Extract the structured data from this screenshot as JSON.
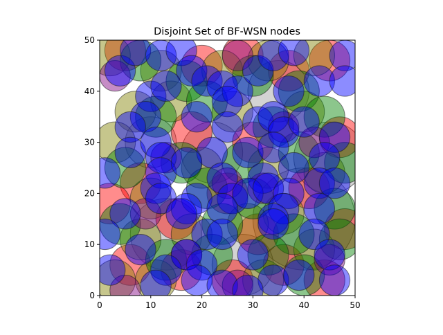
{
  "chart_data": {
    "type": "scatter",
    "title": "Disjoint Set of BF-WSN nodes",
    "xlabel": "",
    "ylabel": "",
    "xlim": [
      0,
      50
    ],
    "ylim": [
      0,
      50
    ],
    "x_ticks": [
      0,
      10,
      20,
      30,
      40,
      50
    ],
    "y_ticks": [
      0,
      10,
      20,
      30,
      40,
      50
    ],
    "grid": false,
    "legend": "none",
    "marker": "filled translucent circle with dark outline",
    "colors": {
      "red": "#ff0000",
      "green": "#008000",
      "blue": "#0000ff",
      "gray": "#808080",
      "purple": "#800080",
      "olive": "#808000"
    },
    "series": [
      {
        "color": "#808080",
        "points": [
          {
            "x": 40,
            "y": 15,
            "r": 10
          },
          {
            "x": 13,
            "y": 12,
            "r": 7
          },
          {
            "x": 45,
            "y": 27,
            "r": 7
          },
          {
            "x": 22,
            "y": 28,
            "r": 6
          },
          {
            "x": 35,
            "y": 40,
            "r": 6
          },
          {
            "x": 10,
            "y": 30,
            "r": 5
          },
          {
            "x": 28,
            "y": 6,
            "r": 6
          }
        ]
      },
      {
        "color": "#ff0000",
        "points": [
          {
            "x": 5,
            "y": 48,
            "r": 4
          },
          {
            "x": 20,
            "y": 45,
            "r": 4
          },
          {
            "x": 28,
            "y": 47,
            "r": 4
          },
          {
            "x": 37,
            "y": 44,
            "r": 4
          },
          {
            "x": 45,
            "y": 46,
            "r": 4
          },
          {
            "x": 18,
            "y": 32,
            "r": 4
          },
          {
            "x": 30,
            "y": 30,
            "r": 4
          },
          {
            "x": 47,
            "y": 31,
            "r": 4
          },
          {
            "x": 8,
            "y": 22,
            "r": 4
          },
          {
            "x": 25,
            "y": 20,
            "r": 4
          },
          {
            "x": 41,
            "y": 21,
            "r": 4
          },
          {
            "x": 2,
            "y": 18,
            "r": 4
          },
          {
            "x": 15,
            "y": 15,
            "r": 4
          },
          {
            "x": 31,
            "y": 12,
            "r": 4
          },
          {
            "x": 48,
            "y": 13,
            "r": 4
          },
          {
            "x": 6,
            "y": 6,
            "r": 4
          },
          {
            "x": 16,
            "y": 5,
            "r": 4
          },
          {
            "x": 26,
            "y": 3,
            "r": 4
          },
          {
            "x": 36,
            "y": 6,
            "r": 4
          },
          {
            "x": 44,
            "y": 3,
            "r": 4
          }
        ]
      },
      {
        "color": "#808000",
        "points": [
          {
            "x": 2,
            "y": 47,
            "r": 4
          },
          {
            "x": 12,
            "y": 44,
            "r": 4
          },
          {
            "x": 24,
            "y": 44,
            "r": 4
          },
          {
            "x": 33,
            "y": 46,
            "r": 4
          },
          {
            "x": 42,
            "y": 47,
            "r": 4
          },
          {
            "x": 7,
            "y": 36,
            "r": 4
          },
          {
            "x": 14,
            "y": 38,
            "r": 4
          },
          {
            "x": 26,
            "y": 36,
            "r": 4
          },
          {
            "x": 40,
            "y": 36,
            "r": 4
          },
          {
            "x": 3,
            "y": 30,
            "r": 4
          },
          {
            "x": 20,
            "y": 25,
            "r": 4
          },
          {
            "x": 33,
            "y": 25,
            "r": 4
          },
          {
            "x": 44,
            "y": 24,
            "r": 4
          },
          {
            "x": 10,
            "y": 19,
            "r": 4
          },
          {
            "x": 36,
            "y": 16,
            "r": 4
          },
          {
            "x": 8,
            "y": 11,
            "r": 4
          },
          {
            "x": 18,
            "y": 12,
            "r": 4
          },
          {
            "x": 29,
            "y": 14,
            "r": 4
          },
          {
            "x": 42,
            "y": 9,
            "r": 4
          },
          {
            "x": 3,
            "y": 3,
            "r": 4
          },
          {
            "x": 11,
            "y": 3,
            "r": 4
          },
          {
            "x": 32,
            "y": 3,
            "r": 4
          }
        ]
      },
      {
        "color": "#008000",
        "points": [
          {
            "x": 8,
            "y": 46,
            "r": 4
          },
          {
            "x": 17,
            "y": 42,
            "r": 4
          },
          {
            "x": 30,
            "y": 43,
            "r": 4
          },
          {
            "x": 39,
            "y": 40,
            "r": 4
          },
          {
            "x": 11,
            "y": 35,
            "r": 4
          },
          {
            "x": 21,
            "y": 38,
            "r": 4
          },
          {
            "x": 34,
            "y": 33,
            "r": 4
          },
          {
            "x": 44,
            "y": 35,
            "r": 4
          },
          {
            "x": 5,
            "y": 25,
            "r": 4
          },
          {
            "x": 16,
            "y": 26,
            "r": 4
          },
          {
            "x": 28,
            "y": 26,
            "r": 4
          },
          {
            "x": 39,
            "y": 28,
            "r": 4
          },
          {
            "x": 48,
            "y": 26,
            "r": 4
          },
          {
            "x": 21,
            "y": 21,
            "r": 4
          },
          {
            "x": 30,
            "y": 19,
            "r": 4
          },
          {
            "x": 46,
            "y": 17,
            "r": 4
          },
          {
            "x": 4,
            "y": 14,
            "r": 4
          },
          {
            "x": 24,
            "y": 14,
            "r": 4
          },
          {
            "x": 38,
            "y": 12,
            "r": 4
          },
          {
            "x": 47,
            "y": 11,
            "r": 4
          },
          {
            "x": 13,
            "y": 7,
            "r": 4
          },
          {
            "x": 22,
            "y": 8,
            "r": 4
          },
          {
            "x": 33,
            "y": 8,
            "r": 4
          },
          {
            "x": 40,
            "y": 4,
            "r": 4
          }
        ]
      },
      {
        "color": "#800080",
        "points": [
          {
            "x": 3,
            "y": 43,
            "r": 3
          },
          {
            "x": 27,
            "y": 47,
            "r": 3
          },
          {
            "x": 36,
            "y": 33,
            "r": 3
          },
          {
            "x": 13,
            "y": 27,
            "r": 3
          },
          {
            "x": 25,
            "y": 22,
            "r": 3
          },
          {
            "x": 42,
            "y": 30,
            "r": 3
          },
          {
            "x": 9,
            "y": 16,
            "r": 3
          },
          {
            "x": 32,
            "y": 21,
            "r": 3
          },
          {
            "x": 17,
            "y": 8,
            "r": 3
          },
          {
            "x": 45,
            "y": 7,
            "r": 3
          },
          {
            "x": 27,
            "y": 2,
            "r": 3
          },
          {
            "x": 5,
            "y": 1,
            "r": 3
          }
        ]
      },
      {
        "color": "#0000ff",
        "points": [
          {
            "x": 4,
            "y": 44,
            "r": 3
          },
          {
            "x": 7,
            "y": 48,
            "r": 3
          },
          {
            "x": 12,
            "y": 47,
            "r": 3
          },
          {
            "x": 16,
            "y": 48,
            "r": 3
          },
          {
            "x": 18,
            "y": 44,
            "r": 3
          },
          {
            "x": 21,
            "y": 42,
            "r": 3
          },
          {
            "x": 24,
            "y": 41,
            "r": 3
          },
          {
            "x": 27,
            "y": 40,
            "r": 3
          },
          {
            "x": 31,
            "y": 44,
            "r": 3
          },
          {
            "x": 34,
            "y": 47,
            "r": 3
          },
          {
            "x": 38,
            "y": 48,
            "r": 3
          },
          {
            "x": 43,
            "y": 42,
            "r": 3
          },
          {
            "x": 48,
            "y": 47,
            "r": 3
          },
          {
            "x": 48,
            "y": 42,
            "r": 3
          },
          {
            "x": 37,
            "y": 40,
            "r": 3
          },
          {
            "x": 10,
            "y": 39,
            "r": 3
          },
          {
            "x": 13,
            "y": 41,
            "r": 3
          },
          {
            "x": 9,
            "y": 35,
            "r": 3
          },
          {
            "x": 6,
            "y": 33,
            "r": 3
          },
          {
            "x": 19,
            "y": 35,
            "r": 3
          },
          {
            "x": 25,
            "y": 38,
            "r": 3
          },
          {
            "x": 31,
            "y": 34,
            "r": 3
          },
          {
            "x": 34,
            "y": 35,
            "r": 3
          },
          {
            "x": 36,
            "y": 32,
            "r": 3
          },
          {
            "x": 40,
            "y": 34,
            "r": 3
          },
          {
            "x": 46,
            "y": 31,
            "r": 3
          },
          {
            "x": 25,
            "y": 33,
            "r": 3
          },
          {
            "x": 6,
            "y": 28,
            "r": 3
          },
          {
            "x": 11,
            "y": 30,
            "r": 3
          },
          {
            "x": 12,
            "y": 27,
            "r": 3
          },
          {
            "x": 22,
            "y": 28,
            "r": 3
          },
          {
            "x": 29,
            "y": 28,
            "r": 3
          },
          {
            "x": 34,
            "y": 29,
            "r": 3
          },
          {
            "x": 44,
            "y": 27,
            "r": 3
          },
          {
            "x": 1,
            "y": 24,
            "r": 3
          },
          {
            "x": 12,
            "y": 24,
            "r": 3
          },
          {
            "x": 17,
            "y": 26,
            "r": 3
          },
          {
            "x": 24,
            "y": 23,
            "r": 3
          },
          {
            "x": 32,
            "y": 23,
            "r": 3
          },
          {
            "x": 38,
            "y": 25,
            "r": 3
          },
          {
            "x": 43,
            "y": 22,
            "r": 3
          },
          {
            "x": 46,
            "y": 22,
            "r": 3
          },
          {
            "x": 11,
            "y": 21,
            "r": 3
          },
          {
            "x": 19,
            "y": 19,
            "r": 3
          },
          {
            "x": 26,
            "y": 19,
            "r": 3
          },
          {
            "x": 29,
            "y": 20,
            "r": 3
          },
          {
            "x": 33,
            "y": 21,
            "r": 3
          },
          {
            "x": 37,
            "y": 20,
            "r": 3
          },
          {
            "x": 12,
            "y": 19,
            "r": 3
          },
          {
            "x": 17,
            "y": 17,
            "r": 3
          },
          {
            "x": 24,
            "y": 17,
            "r": 3
          },
          {
            "x": 36,
            "y": 17,
            "r": 3
          },
          {
            "x": 43,
            "y": 17,
            "r": 3
          },
          {
            "x": 5,
            "y": 16,
            "r": 3
          },
          {
            "x": 16,
            "y": 16,
            "r": 3
          },
          {
            "x": 34,
            "y": 15,
            "r": 3
          },
          {
            "x": 1,
            "y": 12,
            "r": 3
          },
          {
            "x": 21,
            "y": 12,
            "r": 3
          },
          {
            "x": 24,
            "y": 12,
            "r": 3
          },
          {
            "x": 34,
            "y": 14,
            "r": 3
          },
          {
            "x": 42,
            "y": 12,
            "r": 3
          },
          {
            "x": 8,
            "y": 9,
            "r": 3
          },
          {
            "x": 17,
            "y": 8,
            "r": 3
          },
          {
            "x": 30,
            "y": 8,
            "r": 3
          },
          {
            "x": 45,
            "y": 8,
            "r": 3
          },
          {
            "x": 2,
            "y": 5,
            "r": 3
          },
          {
            "x": 13,
            "y": 5,
            "r": 3
          },
          {
            "x": 20,
            "y": 6,
            "r": 3
          },
          {
            "x": 11,
            "y": 2,
            "r": 3
          },
          {
            "x": 19,
            "y": 3,
            "r": 3
          },
          {
            "x": 24,
            "y": 2,
            "r": 3
          },
          {
            "x": 34,
            "y": 3,
            "r": 3
          },
          {
            "x": 39,
            "y": 4,
            "r": 3
          },
          {
            "x": 46,
            "y": 3,
            "r": 3
          },
          {
            "x": 29,
            "y": 1,
            "r": 3
          }
        ]
      }
    ]
  }
}
